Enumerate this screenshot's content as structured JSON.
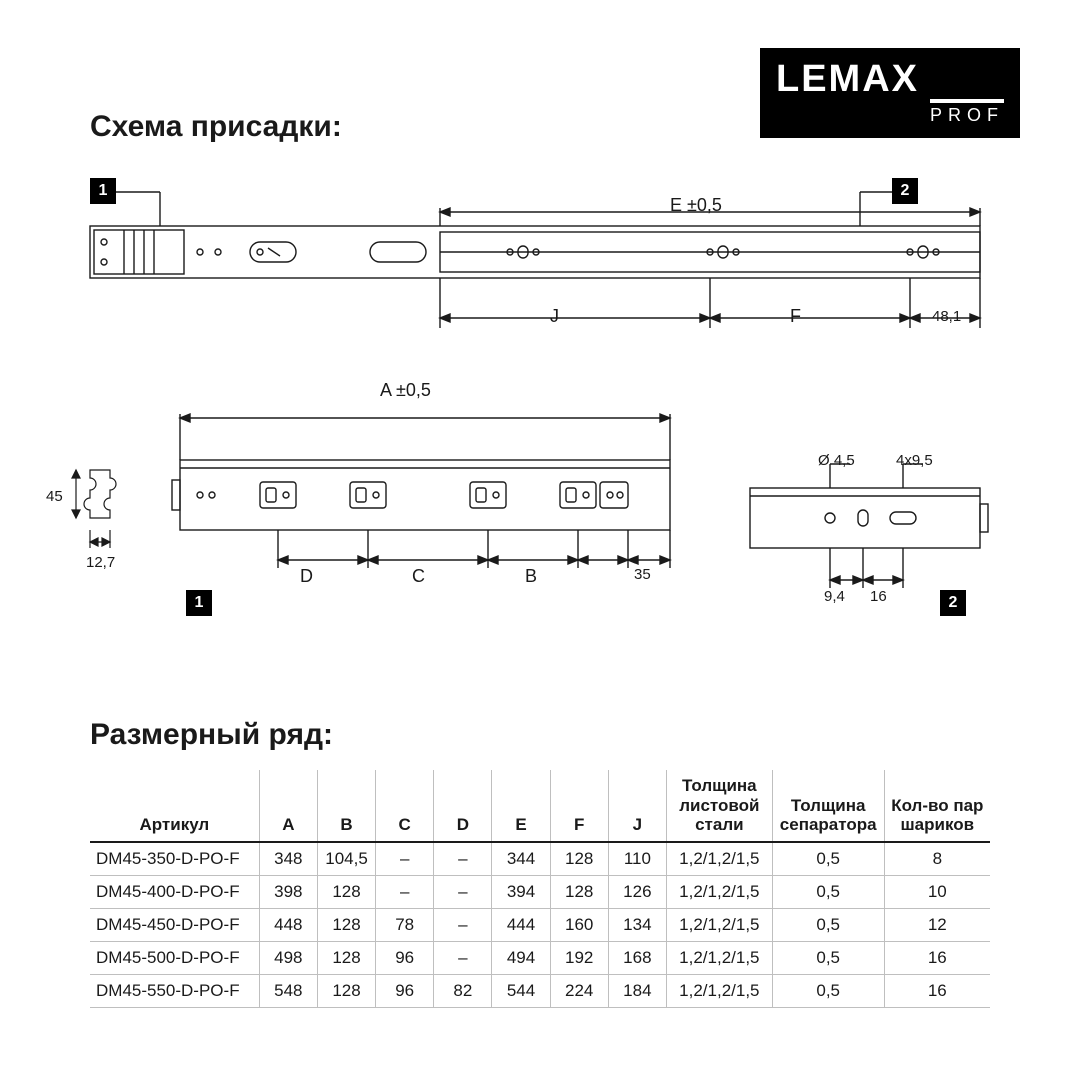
{
  "logo": {
    "brand": "LEMAX",
    "sub": "PROF"
  },
  "headings": {
    "scheme": "Схема присадки:",
    "sizes": "Размерный ряд:"
  },
  "badges": {
    "b1": "1",
    "b2": "2",
    "b1b": "1",
    "b2b": "2"
  },
  "dim_labels": {
    "E": "E ±0,5",
    "J": "J",
    "F": "F",
    "v481": "48,1",
    "A": "A ±0,5",
    "D": "D",
    "C": "C",
    "B": "B",
    "v35": "35",
    "v45": "45",
    "v127": "12,7",
    "d45": "Ø 4,5",
    "sl": "4x9,5",
    "v94": "9,4",
    "v16": "16"
  },
  "table": {
    "columns": [
      "Артикул",
      "A",
      "B",
      "C",
      "D",
      "E",
      "F",
      "J",
      "Толщина листовой стали",
      "Толщина сепаратора",
      "Кол-во пар шариков"
    ],
    "rows": [
      [
        "DM45-350-D-PO-F",
        "348",
        "104,5",
        "–",
        "–",
        "344",
        "128",
        "110",
        "1,2/1,2/1,5",
        "0,5",
        "8"
      ],
      [
        "DM45-400-D-PO-F",
        "398",
        "128",
        "–",
        "–",
        "394",
        "128",
        "126",
        "1,2/1,2/1,5",
        "0,5",
        "10"
      ],
      [
        "DM45-450-D-PO-F",
        "448",
        "128",
        "78",
        "–",
        "444",
        "160",
        "134",
        "1,2/1,2/1,5",
        "0,5",
        "12"
      ],
      [
        "DM45-500-D-PO-F",
        "498",
        "128",
        "96",
        "–",
        "494",
        "192",
        "168",
        "1,2/1,2/1,5",
        "0,5",
        "16"
      ],
      [
        "DM45-550-D-PO-F",
        "548",
        "128",
        "96",
        "82",
        "544",
        "224",
        "184",
        "1,2/1,2/1,5",
        "0,5",
        "16"
      ]
    ],
    "col_classes": [
      "col-art",
      "col-n",
      "col-n",
      "col-n",
      "col-n",
      "col-n",
      "col-n",
      "col-n",
      "col-thk",
      "col-sep",
      "col-cnt"
    ]
  },
  "style": {
    "stroke": "#1a1a1a",
    "stroke_w": 1.4,
    "thin": 1
  }
}
